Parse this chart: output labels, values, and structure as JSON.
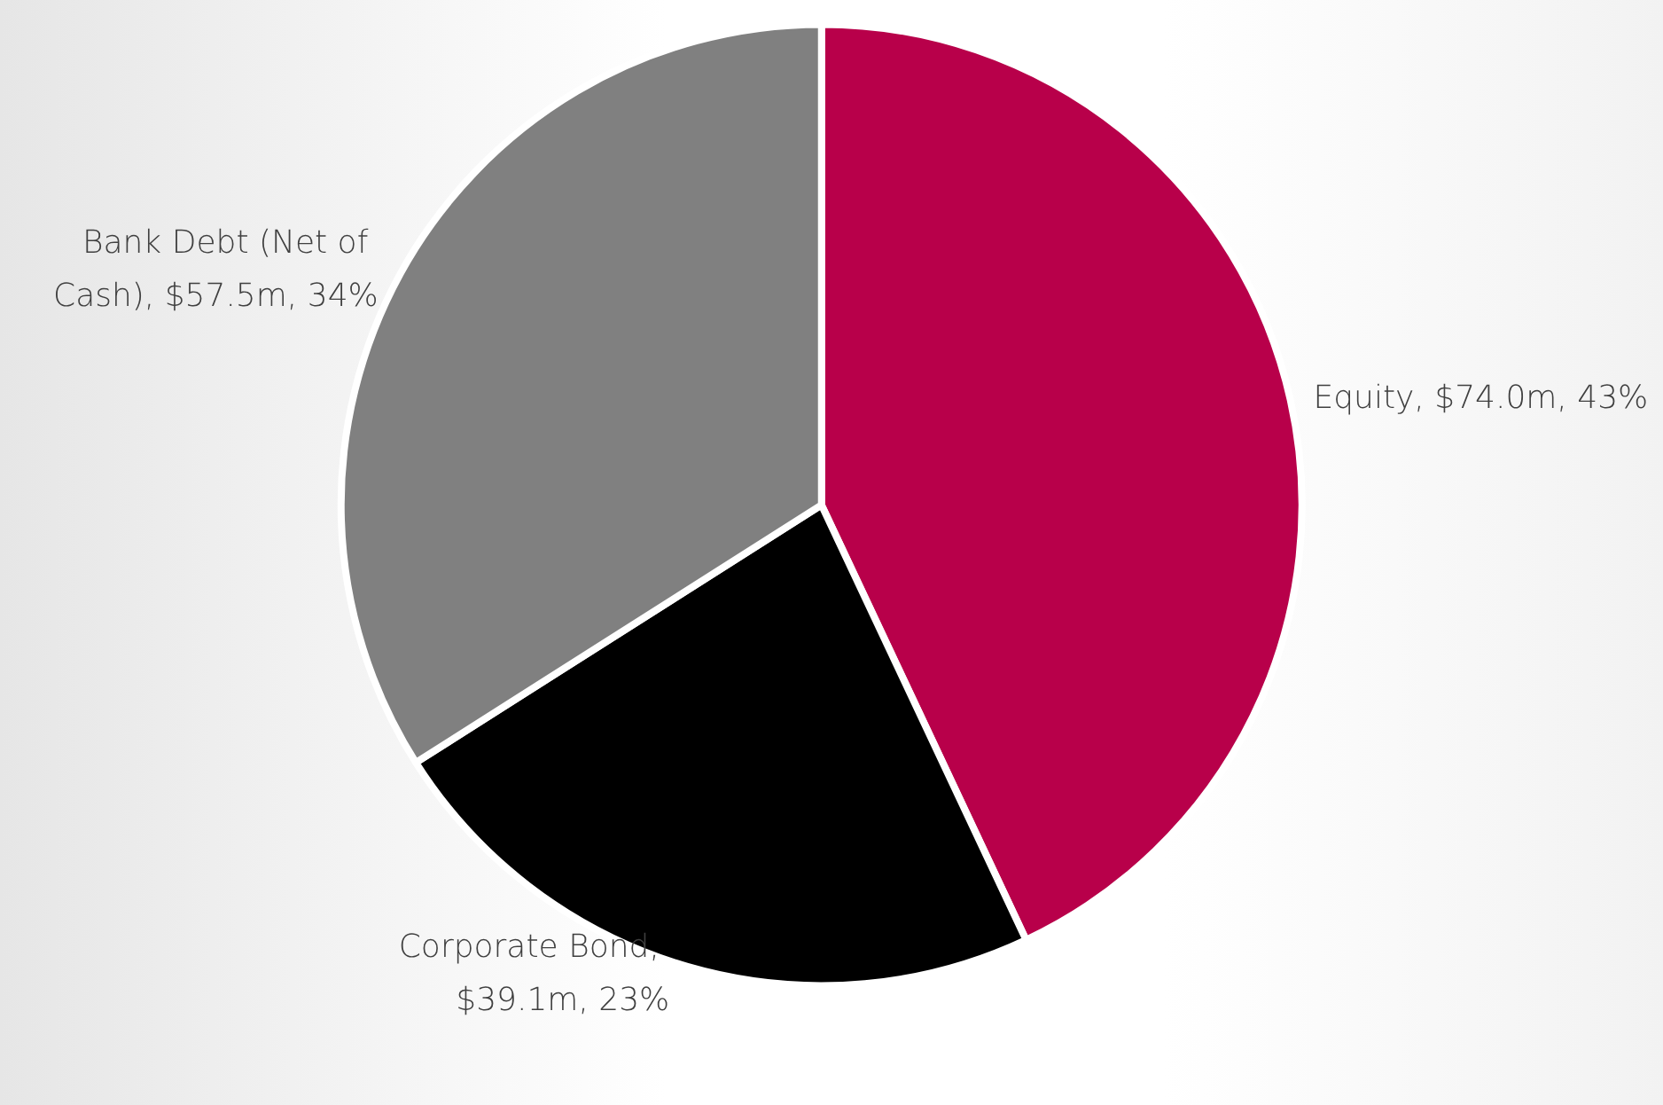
{
  "chart_data": {
    "type": "pie",
    "categories": [
      "Equity, $74.0m, 43%",
      "Corporate Bond, $39.1m, 23%",
      "Bank Debt (Net of Cash), $57.5m, 34%"
    ],
    "values": [
      43,
      23,
      34
    ],
    "colors": [
      "#b8004a",
      "#000000",
      "#808080"
    ],
    "legend": false
  }
}
